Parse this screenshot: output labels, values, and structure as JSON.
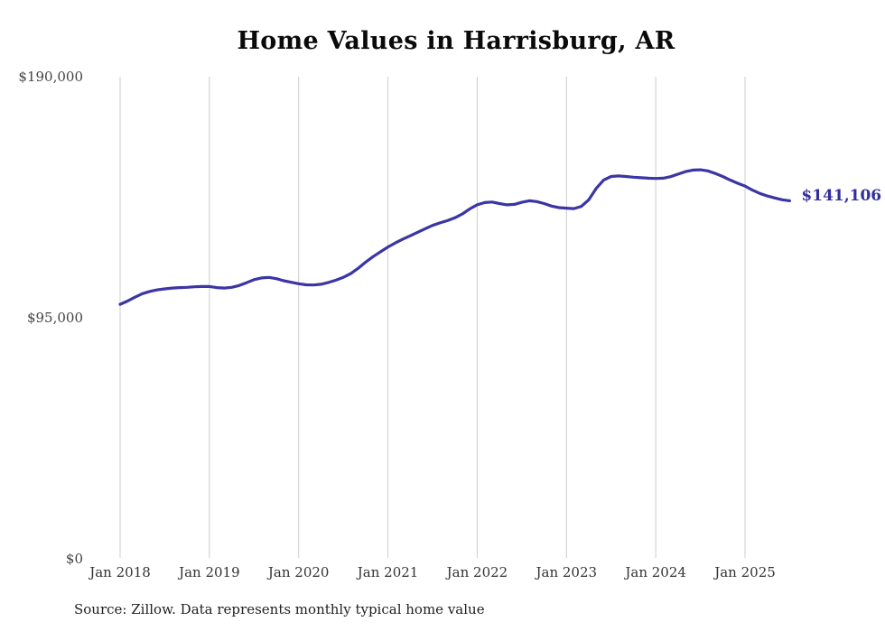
{
  "chart_data": {
    "type": "line",
    "title": "Home Values in Harrisburg, AR",
    "source_note": "Source: Zillow. Data represents monthly typical home value",
    "end_label": "$141,106",
    "end_value": 141106,
    "x_tick_labels": [
      "Jan 2018",
      "Jan 2019",
      "Jan 2020",
      "Jan 2021",
      "Jan 2022",
      "Jan 2023",
      "Jan 2024",
      "Jan 2025"
    ],
    "y_tick_labels": [
      "$0",
      "$95,000",
      "$190,000"
    ],
    "y_tick_values": [
      0,
      95000,
      190000
    ],
    "ylim": [
      0,
      190000
    ],
    "grid": "vertical-only",
    "legend": false,
    "series": [
      {
        "name": "Typical home value",
        "frequency": "monthly",
        "start_month": "Jan 2018",
        "end_month": "Jul 2025",
        "values": [
          100300,
          101600,
          103100,
          104500,
          105400,
          106000,
          106400,
          106700,
          106900,
          107000,
          107200,
          107300,
          107300,
          106900,
          106700,
          107000,
          107700,
          108800,
          110000,
          110700,
          110900,
          110400,
          109600,
          109000,
          108400,
          108000,
          107900,
          108200,
          108900,
          109800,
          110900,
          112400,
          114500,
          116900,
          119100,
          121000,
          122900,
          124500,
          126000,
          127300,
          128700,
          130100,
          131400,
          132400,
          133300,
          134400,
          135900,
          137900,
          139500,
          140400,
          140600,
          140000,
          139500,
          139700,
          140500,
          141100,
          140800,
          140000,
          139000,
          138400,
          138200,
          138000,
          138900,
          141500,
          146000,
          149300,
          150700,
          150900,
          150700,
          150400,
          150200,
          150000,
          149900,
          150000,
          150600,
          151600,
          152600,
          153200,
          153300,
          152900,
          151900,
          150700,
          149300,
          148000,
          146900,
          145300,
          144000,
          143000,
          142200,
          141500,
          141106
        ]
      }
    ],
    "colors": {
      "line": "#3b35a5",
      "end_label": "#312e9e",
      "grid": "#cccccc",
      "title": "#0a0a0a",
      "y_tick": "#444444",
      "x_tick": "#333333",
      "source": "#1f1f1f"
    }
  }
}
